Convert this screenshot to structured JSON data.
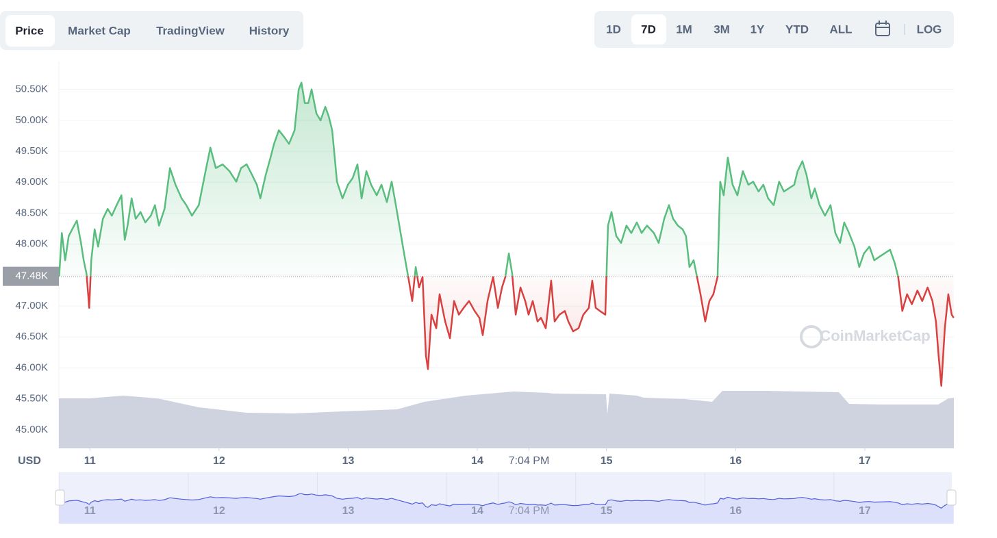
{
  "tabs": [
    "Price",
    "Market Cap",
    "TradingView",
    "History"
  ],
  "ranges": [
    "1D",
    "7D",
    "1M",
    "3M",
    "1Y",
    "YTD",
    "ALL",
    "LOG"
  ],
  "chart_data": {
    "type": "line",
    "ylabel": "USD",
    "watermark": "CoinMarketCap",
    "up_color": "#58bd7d",
    "down_color": "#d94040",
    "baseline": {
      "value": 47480,
      "label": "47.48K"
    },
    "grid": true,
    "xlim": [
      10.76,
      17.69
    ],
    "xticks": [
      11,
      12,
      13,
      14,
      {
        "value": 14.4,
        "label": "7:04 PM"
      },
      15,
      16,
      17
    ],
    "ylim": [
      44700,
      50950
    ],
    "yticks": [
      {
        "value": 45000,
        "label": "45.00K"
      },
      {
        "value": 45500,
        "label": "45.50K"
      },
      {
        "value": 46000,
        "label": "46.00K"
      },
      {
        "value": 46500,
        "label": "46.50K"
      },
      {
        "value": 47000,
        "label": "47.00K"
      },
      {
        "value": 47500,
        "label": "47.50K"
      },
      {
        "value": 48000,
        "label": "48.00K"
      },
      {
        "value": 48500,
        "label": "48.50K"
      },
      {
        "value": 49000,
        "label": "49.00K"
      },
      {
        "value": 49500,
        "label": "49.50K"
      },
      {
        "value": 50000,
        "label": "50.00K"
      },
      {
        "value": 50500,
        "label": "50.50K"
      }
    ],
    "x": [
      10.762,
      10.783,
      10.809,
      10.836,
      10.878,
      10.899,
      10.931,
      10.952,
      10.974,
      10.995,
      11.011,
      11.037,
      11.064,
      11.101,
      11.138,
      11.17,
      11.207,
      11.244,
      11.27,
      11.292,
      11.323,
      11.355,
      11.392,
      11.429,
      11.472,
      11.504,
      11.535,
      11.578,
      11.62,
      11.663,
      11.71,
      11.747,
      11.79,
      11.843,
      11.896,
      11.933,
      11.975,
      12.028,
      12.081,
      12.134,
      12.171,
      12.214,
      12.256,
      12.293,
      12.32,
      12.362,
      12.399,
      12.426,
      12.463,
      12.505,
      12.542,
      12.585,
      12.617,
      12.638,
      12.664,
      12.691,
      12.717,
      12.754,
      12.786,
      12.823,
      12.85,
      12.876,
      12.913,
      12.956,
      12.998,
      13.035,
      13.072,
      13.104,
      13.141,
      13.178,
      13.221,
      13.258,
      13.3,
      13.337,
      13.369,
      13.396,
      13.433,
      13.47,
      13.496,
      13.523,
      13.549,
      13.576,
      13.602,
      13.618,
      13.645,
      13.682,
      13.708,
      13.751,
      13.788,
      13.82,
      13.857,
      13.894,
      13.936,
      13.979,
      14.016,
      14.042,
      14.079,
      14.122,
      14.159,
      14.191,
      14.217,
      14.244,
      14.27,
      14.297,
      14.334,
      14.371,
      14.397,
      14.429,
      14.466,
      14.493,
      14.53,
      14.572,
      14.599,
      14.636,
      14.678,
      14.705,
      14.742,
      14.784,
      14.821,
      14.864,
      14.89,
      14.917,
      14.949,
      14.991,
      15.012,
      15.039,
      15.076,
      15.113,
      15.155,
      15.192,
      15.235,
      15.272,
      15.314,
      15.367,
      15.404,
      15.447,
      15.484,
      15.516,
      15.553,
      15.59,
      15.616,
      15.643,
      15.675,
      15.701,
      15.728,
      15.765,
      15.797,
      15.828,
      15.86,
      15.881,
      15.908,
      15.94,
      15.977,
      16.014,
      16.056,
      16.099,
      16.136,
      16.178,
      16.215,
      16.252,
      16.295,
      16.337,
      16.374,
      16.411,
      16.454,
      16.48,
      16.517,
      16.549,
      16.586,
      16.613,
      16.65,
      16.692,
      16.735,
      16.772,
      16.809,
      16.841,
      16.878,
      16.92,
      16.957,
      16.994,
      17.037,
      17.074,
      17.116,
      17.153,
      17.196,
      17.233,
      17.259,
      17.291,
      17.328,
      17.365,
      17.408,
      17.445,
      17.487,
      17.524,
      17.551,
      17.572,
      17.593,
      17.62,
      17.647,
      17.673,
      17.689
    ],
    "values": [
      47480,
      48180,
      47740,
      48130,
      48300,
      48380,
      48020,
      47740,
      47520,
      46970,
      47740,
      48240,
      47960,
      48410,
      48570,
      48460,
      48630,
      48790,
      48070,
      48300,
      48740,
      48410,
      48520,
      48350,
      48460,
      48630,
      48300,
      48570,
      49230,
      48960,
      48740,
      48630,
      48460,
      48630,
      49180,
      49560,
      49230,
      49290,
      49180,
      49010,
      49230,
      49290,
      49120,
      48960,
      48740,
      49120,
      49400,
      49620,
      49840,
      49730,
      49620,
      49840,
      50500,
      50610,
      50280,
      50280,
      50500,
      50110,
      50000,
      50220,
      50060,
      49840,
      49010,
      48740,
      48960,
      49070,
      49290,
      48740,
      49180,
      48960,
      48790,
      48960,
      48680,
      49010,
      48630,
      48300,
      47850,
      47410,
      47080,
      47630,
      47300,
      47470,
      46200,
      45980,
      46860,
      46640,
      47190,
      46750,
      46480,
      47080,
      46860,
      46970,
      47080,
      46920,
      46810,
      46530,
      47080,
      47470,
      46970,
      47300,
      47470,
      47850,
      47520,
      46860,
      47300,
      47080,
      46860,
      47080,
      46750,
      46810,
      46640,
      47410,
      46750,
      46860,
      46920,
      46750,
      46590,
      46640,
      46860,
      46970,
      47410,
      46970,
      46920,
      46860,
      48300,
      48520,
      48130,
      48020,
      48300,
      48180,
      48350,
      48180,
      48300,
      48180,
      48020,
      48410,
      48630,
      48410,
      48300,
      48240,
      48130,
      47630,
      47740,
      47470,
      47190,
      46750,
      47080,
      47190,
      47470,
      49010,
      48790,
      49400,
      48960,
      48790,
      49180,
      48960,
      49010,
      48850,
      48960,
      48740,
      48630,
      49010,
      48850,
      48900,
      48960,
      49180,
      49340,
      49120,
      48740,
      48900,
      48630,
      48460,
      48630,
      48180,
      48020,
      48350,
      48180,
      47960,
      47630,
      47850,
      47960,
      47740,
      47800,
      47850,
      47910,
      47690,
      47470,
      46920,
      47190,
      47030,
      47250,
      47080,
      47300,
      47080,
      46750,
      46200,
      45710,
      46640,
      47190,
      46860,
      46810
    ]
  }
}
